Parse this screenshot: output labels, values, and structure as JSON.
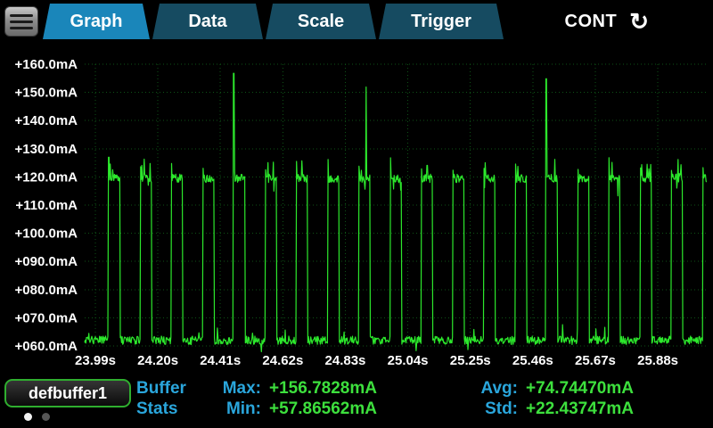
{
  "header": {
    "tabs": [
      {
        "label": "Graph",
        "active": true
      },
      {
        "label": "Data",
        "active": false
      },
      {
        "label": "Scale",
        "active": false
      },
      {
        "label": "Trigger",
        "active": false
      }
    ],
    "mode_label": "CONT",
    "mode_icon_glyph": "↻"
  },
  "footer": {
    "buffer_name": "defbuffer1",
    "stats_title": {
      "line1": "Buffer",
      "line2": "Stats"
    },
    "stats": [
      {
        "label": "Max:",
        "value": "+156.7828mA"
      },
      {
        "label": "Avg:",
        "value": "+74.74470mA"
      },
      {
        "label": "Min:",
        "value": "+57.86562mA"
      },
      {
        "label": "Std:",
        "value": "+22.43747mA"
      }
    ],
    "page_dots": {
      "count": 2,
      "active_index": 0
    }
  },
  "colors": {
    "tab_active": "#1a86ba",
    "tab_inactive": "#164b61",
    "accent_blue": "#2aa6dc",
    "value_green": "#3de03d",
    "trace_green": "#2ce82c",
    "grid_green": "#0e5216"
  },
  "chart_data": {
    "type": "line",
    "y_ticks_mA": [
      160,
      150,
      140,
      130,
      120,
      110,
      100,
      90,
      80,
      70,
      60
    ],
    "y_tick_labels": [
      "+160.0mA",
      "+150.0mA",
      "+140.0mA",
      "+130.0mA",
      "+120.0mA",
      "+110.0mA",
      "+100.0mA",
      "+090.0mA",
      "+080.0mA",
      "+070.0mA",
      "+060.0mA"
    ],
    "x_ticks_s": [
      23.99,
      24.2,
      24.41,
      24.62,
      24.83,
      25.04,
      25.25,
      25.46,
      25.67,
      25.88
    ],
    "x_tick_labels": [
      "23.99s",
      "24.20s",
      "24.41s",
      "24.62s",
      "24.83s",
      "25.04s",
      "25.25s",
      "25.46s",
      "25.67s",
      "25.88s"
    ],
    "x_range_s": [
      23.954,
      26.045
    ],
    "y_range_mA": [
      60,
      160
    ],
    "grid": true,
    "trace_color": "#2ce82c",
    "grid_color": "#0e5216",
    "waveform": {
      "baseline_mA": 62,
      "high_mA": 119.5,
      "period_s": 0.105,
      "first_pulse_s": 24.035,
      "pulse_width_s": 0.038,
      "noise_mA": 1.5,
      "seed": 20,
      "spikes": [
        {
          "t_s": 24.035,
          "peak_mA": 127.0
        },
        {
          "t_s": 24.455,
          "peak_mA": 156.7828
        },
        {
          "t_s": 24.9,
          "peak_mA": 151.9
        },
        {
          "t_s": 25.505,
          "peak_mA": 154.8
        }
      ],
      "stats": {
        "max_mA": 156.7828,
        "min_mA": 57.86562,
        "avg_mA": 74.7447,
        "std_mA": 22.43747
      }
    }
  }
}
